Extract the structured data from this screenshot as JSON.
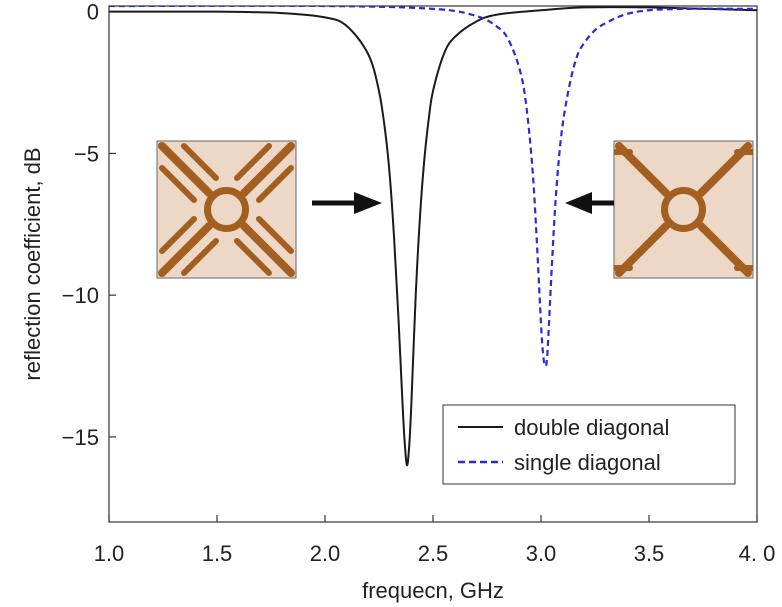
{
  "chart_data": {
    "type": "line",
    "title": "",
    "xlabel": "frequecn, GHz",
    "ylabel": "reflection coefficient, dB",
    "xlim": [
      1.0,
      4.0
    ],
    "ylim": [
      -18,
      0.2
    ],
    "x_ticks": [
      1.0,
      1.5,
      2.0,
      2.5,
      3.0,
      3.5,
      4.0
    ],
    "x_tick_labels": [
      "1.0",
      "1.5",
      "2.0",
      "2.5",
      "3.0",
      "3.5",
      "4. 0"
    ],
    "y_ticks": [
      0,
      -5,
      -10,
      -15
    ],
    "y_tick_labels": [
      "0",
      "−5",
      "−10",
      "−15"
    ],
    "grid": false,
    "legend_position": "lower-right",
    "series": [
      {
        "name": "double diagonal",
        "color": "#1a1a1a",
        "style": "solid",
        "x": [
          1.0,
          1.5,
          1.8,
          2.0,
          2.1,
          2.2,
          2.25,
          2.28,
          2.3,
          2.32,
          2.34,
          2.36,
          2.37,
          2.38,
          2.39,
          2.4,
          2.42,
          2.44,
          2.46,
          2.48,
          2.5,
          2.55,
          2.6,
          2.7,
          2.8,
          3.0,
          3.2,
          3.5,
          4.0
        ],
        "y": [
          0,
          0,
          -0.05,
          -0.2,
          -0.5,
          -1.5,
          -2.8,
          -4.3,
          -5.8,
          -8.0,
          -10.8,
          -14.0,
          -15.3,
          -16.0,
          -15.3,
          -13.8,
          -10.0,
          -7.2,
          -5.2,
          -3.8,
          -2.8,
          -1.5,
          -0.9,
          -0.35,
          -0.1,
          0.05,
          0.15,
          0.15,
          0.05
        ]
      },
      {
        "name": "single diagonal",
        "color": "#2a2ad6",
        "style": "dashed",
        "x": [
          1.0,
          2.0,
          2.5,
          2.7,
          2.8,
          2.85,
          2.9,
          2.93,
          2.96,
          2.98,
          3.0,
          3.01,
          3.02,
          3.03,
          3.05,
          3.07,
          3.1,
          3.15,
          3.2,
          3.3,
          3.5,
          4.0
        ],
        "y": [
          0.2,
          0.2,
          0.1,
          -0.15,
          -0.55,
          -1.0,
          -2.0,
          -3.2,
          -5.5,
          -8.0,
          -11.0,
          -12.1,
          -12.5,
          -12.0,
          -9.0,
          -6.4,
          -4.0,
          -2.0,
          -1.1,
          -0.4,
          0.05,
          0.1
        ]
      }
    ],
    "annotations": [
      {
        "type": "arrow",
        "direction": "right",
        "points_to": "double diagonal"
      },
      {
        "type": "arrow",
        "direction": "left",
        "points_to": "single diagonal"
      },
      {
        "type": "inset-image",
        "depicts": "double diagonal unit cell"
      },
      {
        "type": "inset-image",
        "depicts": "single diagonal unit cell"
      }
    ]
  }
}
